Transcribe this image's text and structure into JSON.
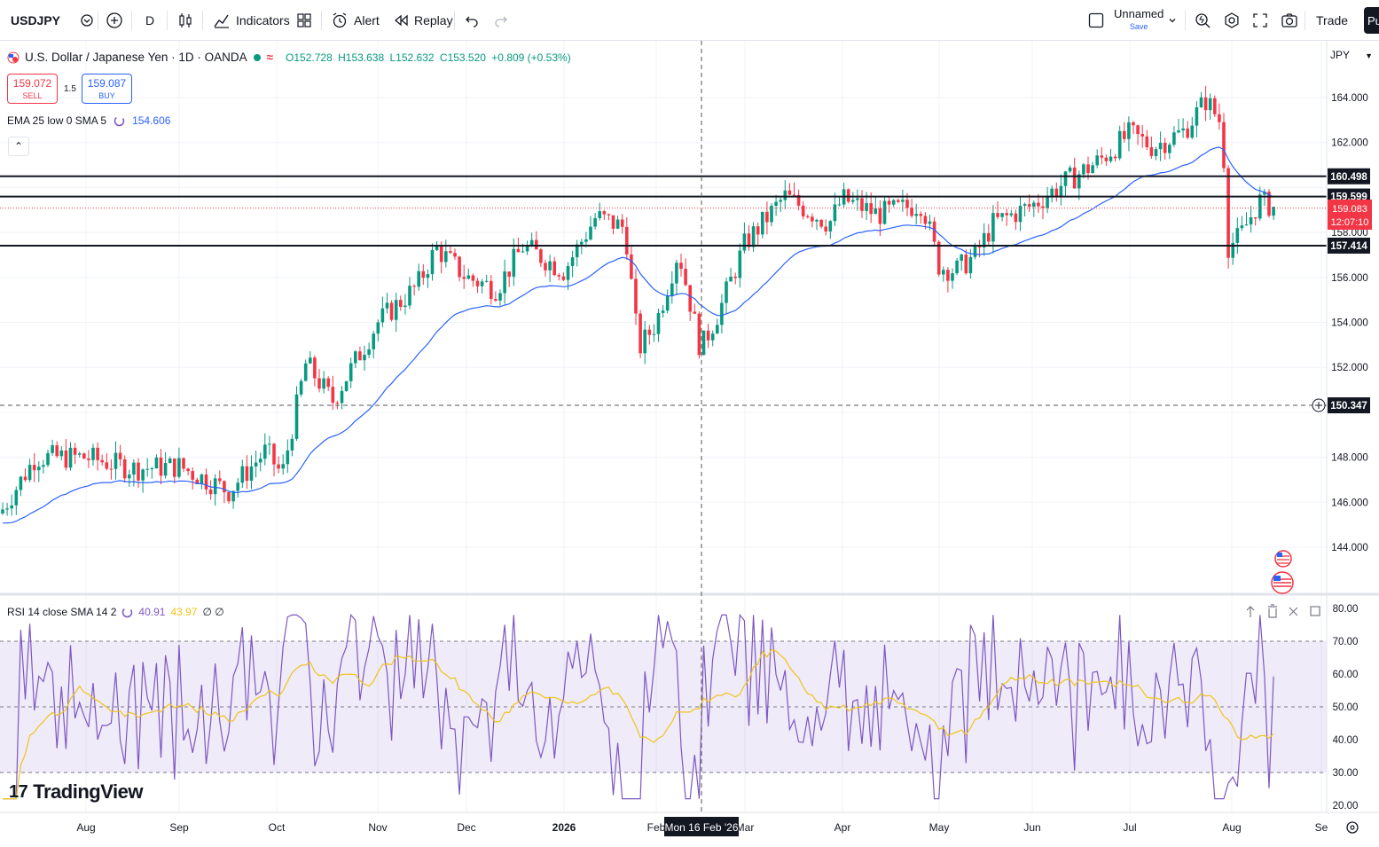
{
  "toolbar": {
    "symbol": "USDJPY",
    "interval": "D",
    "indicators_label": "Indicators",
    "alert_label": "Alert",
    "replay_label": "Replay",
    "layout_name": "Unnamed",
    "layout_save": "Save",
    "trade_label": "Trade",
    "publish_label": "Pu"
  },
  "legend": {
    "title": "U.S. Dollar / Japanese Yen · 1D · OANDA",
    "open": "O152.728",
    "high": "H153.638",
    "low": "L152.632",
    "close": "C153.520",
    "change": "+0.809 (+0.53%)"
  },
  "trade": {
    "sell_price": "159.072",
    "sell_label": "SELL",
    "spread": "1.5",
    "buy_price": "159.087",
    "buy_label": "BUY"
  },
  "indicator": {
    "label": "EMA 25 low 0 SMA 5",
    "value": "154.606",
    "collapse_icon": "chevron-up-icon"
  },
  "rsi": {
    "label": "RSI 14 close SMA 14 2",
    "rsi_value": "40.91",
    "sma_value": "43.97",
    "extra": "∅ ∅",
    "scale": [
      "80.00",
      "70.00",
      "60.00",
      "50.00",
      "40.00",
      "30.00",
      "20.00"
    ]
  },
  "price_scale": {
    "currency": "JPY",
    "ticks": [
      "164.000",
      "162.000",
      "158.000",
      "156.000",
      "154.000",
      "152.000",
      "148.000",
      "146.000",
      "144.000"
    ],
    "level_labels": [
      "160.498",
      "159.599",
      "157.414"
    ],
    "current_price": "159.083",
    "countdown": "12:07:10",
    "crosshair_price": "150.347"
  },
  "time_axis": {
    "labels": [
      "Aug",
      "Sep",
      "Oct",
      "Nov",
      "Dec",
      "2026",
      "Feb",
      "Mar",
      "Apr",
      "May",
      "Jun",
      "Jul",
      "Aug",
      "Se"
    ],
    "crosshair_date": "Mon 16 Feb '26"
  },
  "branding": "TradingView",
  "colors": {
    "up": "#089981",
    "down": "#f23645",
    "ema": "#2962ff",
    "rsi": "#7e57c2",
    "rsi_sma": "#f0c419",
    "rsi_band": "#7e57c2"
  },
  "chart_data": {
    "type": "candlestick",
    "symbol": "USDJPY",
    "price_range": [
      143,
      165
    ],
    "horizontal_levels": [
      160.498,
      159.599,
      157.414
    ],
    "approx_close_by_month": {
      "Aug": 147.5,
      "Sep": 147.8,
      "Oct": 151.5,
      "Nov": 155.5,
      "Dec": 156.5,
      "2026": 157.3,
      "Feb": 153.5,
      "Mar": 157.8,
      "Apr": 159.0,
      "May": 156.8,
      "Jun": 159.8,
      "Jul": 162.0,
      "Aug (2)": 158.5
    },
    "last_price": 159.083,
    "ema_last": 154.606,
    "rsi_range": [
      20,
      80
    ],
    "rsi_bands": [
      30,
      50,
      70
    ],
    "rsi_last": 40.91,
    "rsi_sma_last": 43.97
  }
}
